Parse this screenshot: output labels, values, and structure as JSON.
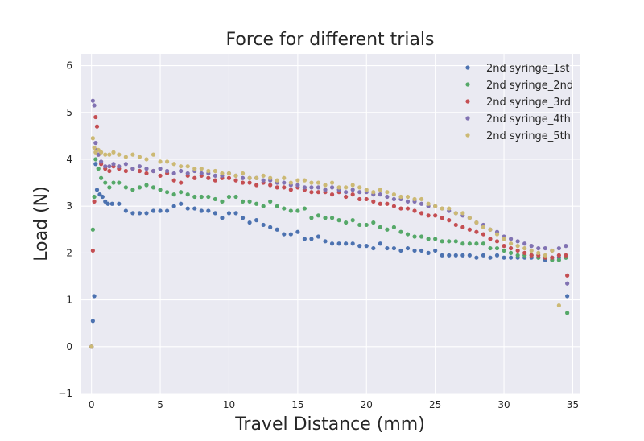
{
  "chart_data": {
    "type": "scatter",
    "title": "Force for different trials",
    "xlabel": "Travel Distance (mm)",
    "ylabel": "Load (N)",
    "xlim": [
      -0.8,
      35.5
    ],
    "ylim": [
      -1,
      6.25
    ],
    "xticks": [
      0,
      5,
      10,
      15,
      20,
      25,
      30,
      35
    ],
    "yticks": [
      -1,
      0,
      1,
      2,
      3,
      4,
      5,
      6
    ],
    "xtick_labels": [
      "0",
      "5",
      "10",
      "15",
      "20",
      "25",
      "30",
      "35"
    ],
    "ytick_labels": [
      "−1",
      "0",
      "1",
      "2",
      "3",
      "4",
      "5",
      "6"
    ],
    "grid": true,
    "legend_position": "top-right",
    "background": "#eaeaf2",
    "series": [
      {
        "name": "2nd syringe_1st",
        "color": "#4c72b0",
        "x": [
          0.0,
          0.1,
          0.2,
          0.3,
          0.4,
          0.6,
          0.8,
          1.0,
          1.2,
          1.5,
          2.0,
          2.5,
          3.0,
          3.5,
          4.0,
          4.5,
          5.0,
          5.5,
          6.0,
          6.5,
          7.0,
          7.5,
          8.0,
          8.5,
          9.0,
          9.5,
          10.0,
          10.5,
          11.0,
          11.5,
          12.0,
          12.5,
          13.0,
          13.5,
          14.0,
          14.5,
          15.0,
          15.5,
          16.0,
          16.5,
          17.0,
          17.5,
          18.0,
          18.5,
          19.0,
          19.5,
          20.0,
          20.5,
          21.0,
          21.5,
          22.0,
          22.5,
          23.0,
          23.5,
          24.0,
          24.5,
          25.0,
          25.5,
          26.0,
          26.5,
          27.0,
          27.5,
          28.0,
          28.5,
          29.0,
          29.5,
          30.0,
          30.5,
          31.0,
          31.5,
          32.0,
          32.5,
          33.0,
          33.5,
          34.0,
          34.5,
          34.6
        ],
        "y": [
          0.0,
          0.55,
          1.08,
          3.9,
          3.35,
          3.25,
          3.2,
          3.1,
          3.05,
          3.05,
          3.05,
          2.9,
          2.85,
          2.85,
          2.85,
          2.9,
          2.9,
          2.9,
          3.0,
          3.05,
          2.95,
          2.95,
          2.9,
          2.9,
          2.85,
          2.75,
          2.85,
          2.85,
          2.75,
          2.65,
          2.7,
          2.6,
          2.55,
          2.5,
          2.4,
          2.4,
          2.45,
          2.3,
          2.3,
          2.35,
          2.25,
          2.2,
          2.2,
          2.2,
          2.2,
          2.15,
          2.15,
          2.1,
          2.2,
          2.1,
          2.1,
          2.05,
          2.1,
          2.05,
          2.05,
          2.0,
          2.05,
          1.95,
          1.95,
          1.95,
          1.95,
          1.95,
          1.9,
          1.95,
          1.9,
          1.95,
          1.9,
          1.9,
          1.9,
          1.9,
          1.9,
          1.9,
          1.85,
          1.9,
          1.9,
          1.9,
          1.08
        ]
      },
      {
        "name": "2nd syringe_2nd",
        "color": "#55a868",
        "x": [
          0.0,
          0.1,
          0.2,
          0.3,
          0.5,
          0.7,
          1.0,
          1.3,
          1.6,
          2.0,
          2.5,
          3.0,
          3.5,
          4.0,
          4.5,
          5.0,
          5.5,
          6.0,
          6.5,
          7.0,
          7.5,
          8.0,
          8.5,
          9.0,
          9.5,
          10.0,
          10.5,
          11.0,
          11.5,
          12.0,
          12.5,
          13.0,
          13.5,
          14.0,
          14.5,
          15.0,
          15.5,
          16.0,
          16.5,
          17.0,
          17.5,
          18.0,
          18.5,
          19.0,
          19.5,
          20.0,
          20.5,
          21.0,
          21.5,
          22.0,
          22.5,
          23.0,
          23.5,
          24.0,
          24.5,
          25.0,
          25.5,
          26.0,
          26.5,
          27.0,
          27.5,
          28.0,
          28.5,
          29.0,
          29.5,
          30.0,
          30.5,
          31.0,
          31.5,
          32.0,
          32.5,
          33.0,
          33.5,
          34.0,
          34.5,
          34.6
        ],
        "y": [
          0.0,
          2.5,
          3.2,
          4.0,
          3.8,
          3.6,
          3.5,
          3.4,
          3.5,
          3.5,
          3.4,
          3.35,
          3.4,
          3.45,
          3.4,
          3.35,
          3.3,
          3.25,
          3.3,
          3.25,
          3.2,
          3.2,
          3.2,
          3.15,
          3.1,
          3.2,
          3.2,
          3.1,
          3.1,
          3.05,
          3.0,
          3.1,
          3.0,
          2.95,
          2.9,
          2.9,
          2.95,
          2.75,
          2.8,
          2.75,
          2.75,
          2.7,
          2.65,
          2.7,
          2.6,
          2.6,
          2.65,
          2.55,
          2.5,
          2.55,
          2.45,
          2.4,
          2.35,
          2.35,
          2.3,
          2.3,
          2.25,
          2.25,
          2.25,
          2.2,
          2.2,
          2.2,
          2.2,
          2.1,
          2.1,
          2.05,
          2.0,
          1.95,
          1.95,
          1.95,
          1.9,
          1.9,
          1.85,
          1.85,
          1.9,
          0.72
        ]
      },
      {
        "name": "2nd syringe_3rd",
        "color": "#c44e52",
        "x": [
          0.0,
          0.1,
          0.2,
          0.3,
          0.4,
          0.5,
          0.7,
          1.0,
          1.3,
          1.6,
          2.0,
          2.5,
          3.0,
          3.5,
          4.0,
          4.5,
          5.0,
          5.5,
          6.0,
          6.5,
          7.0,
          7.5,
          8.0,
          8.5,
          9.0,
          9.5,
          10.0,
          10.5,
          11.0,
          11.5,
          12.0,
          12.5,
          13.0,
          13.5,
          14.0,
          14.5,
          15.0,
          15.5,
          16.0,
          16.5,
          17.0,
          17.5,
          18.0,
          18.5,
          19.0,
          19.5,
          20.0,
          20.5,
          21.0,
          21.5,
          22.0,
          22.5,
          23.0,
          23.5,
          24.0,
          24.5,
          25.0,
          25.5,
          26.0,
          26.5,
          27.0,
          27.5,
          28.0,
          28.5,
          29.0,
          29.5,
          30.0,
          30.5,
          31.0,
          31.5,
          32.0,
          32.5,
          33.0,
          33.5,
          34.0,
          34.5,
          34.6
        ],
        "y": [
          0.0,
          2.05,
          3.1,
          4.9,
          4.7,
          4.1,
          3.9,
          3.8,
          3.75,
          3.85,
          3.8,
          3.75,
          3.8,
          3.75,
          3.7,
          3.75,
          3.65,
          3.7,
          3.55,
          3.5,
          3.65,
          3.6,
          3.65,
          3.6,
          3.55,
          3.6,
          3.6,
          3.55,
          3.5,
          3.5,
          3.45,
          3.5,
          3.45,
          3.4,
          3.4,
          3.35,
          3.4,
          3.35,
          3.3,
          3.3,
          3.3,
          3.25,
          3.3,
          3.2,
          3.25,
          3.15,
          3.15,
          3.1,
          3.05,
          3.05,
          3.0,
          2.95,
          2.95,
          2.9,
          2.85,
          2.8,
          2.8,
          2.75,
          2.7,
          2.6,
          2.55,
          2.5,
          2.45,
          2.4,
          2.3,
          2.25,
          2.15,
          2.1,
          2.05,
          2.0,
          1.95,
          1.95,
          1.9,
          1.9,
          1.95,
          1.95,
          1.52
        ]
      },
      {
        "name": "2nd syringe_4th",
        "color": "#8172b2",
        "x": [
          0.0,
          0.1,
          0.2,
          0.3,
          0.4,
          0.5,
          0.7,
          1.0,
          1.3,
          1.6,
          2.0,
          2.5,
          3.0,
          3.5,
          4.0,
          4.5,
          5.0,
          5.5,
          6.0,
          6.5,
          7.0,
          7.5,
          8.0,
          8.5,
          9.0,
          9.5,
          10.0,
          10.5,
          11.0,
          11.5,
          12.0,
          12.5,
          13.0,
          13.5,
          14.0,
          14.5,
          15.0,
          15.5,
          16.0,
          16.5,
          17.0,
          17.5,
          18.0,
          18.5,
          19.0,
          19.5,
          20.0,
          20.5,
          21.0,
          21.5,
          22.0,
          22.5,
          23.0,
          23.5,
          24.0,
          24.5,
          25.0,
          25.5,
          26.0,
          26.5,
          27.0,
          27.5,
          28.0,
          28.5,
          29.0,
          29.5,
          30.0,
          30.5,
          31.0,
          31.5,
          32.0,
          32.5,
          33.0,
          33.5,
          34.0,
          34.5,
          34.6
        ],
        "y": [
          0.0,
          5.25,
          5.15,
          4.35,
          4.2,
          4.1,
          3.95,
          3.85,
          3.85,
          3.9,
          3.85,
          3.9,
          3.8,
          3.85,
          3.8,
          3.75,
          3.8,
          3.75,
          3.7,
          3.75,
          3.7,
          3.75,
          3.7,
          3.7,
          3.65,
          3.65,
          3.7,
          3.65,
          3.6,
          3.6,
          3.6,
          3.55,
          3.55,
          3.5,
          3.5,
          3.45,
          3.45,
          3.4,
          3.4,
          3.4,
          3.35,
          3.4,
          3.35,
          3.3,
          3.35,
          3.3,
          3.3,
          3.25,
          3.25,
          3.2,
          3.15,
          3.15,
          3.1,
          3.1,
          3.05,
          3.0,
          3.0,
          2.95,
          2.9,
          2.85,
          2.8,
          2.75,
          2.65,
          2.6,
          2.5,
          2.45,
          2.35,
          2.3,
          2.25,
          2.2,
          2.15,
          2.1,
          2.1,
          2.05,
          2.1,
          2.15,
          1.35
        ]
      },
      {
        "name": "2nd syringe_5th",
        "color": "#ccb974",
        "x": [
          0.0,
          0.1,
          0.2,
          0.3,
          0.5,
          0.7,
          1.0,
          1.3,
          1.6,
          2.0,
          2.5,
          3.0,
          3.5,
          4.0,
          4.5,
          5.0,
          5.5,
          6.0,
          6.5,
          7.0,
          7.5,
          8.0,
          8.5,
          9.0,
          9.5,
          10.0,
          10.5,
          11.0,
          11.5,
          12.0,
          12.5,
          13.0,
          13.5,
          14.0,
          14.5,
          15.0,
          15.5,
          16.0,
          16.5,
          17.0,
          17.5,
          18.0,
          18.5,
          19.0,
          19.5,
          20.0,
          20.5,
          21.0,
          21.5,
          22.0,
          22.5,
          23.0,
          23.5,
          24.0,
          24.5,
          25.0,
          25.5,
          26.0,
          26.5,
          27.0,
          27.5,
          28.0,
          28.5,
          29.0,
          29.5,
          30.0,
          30.5,
          31.0,
          31.5,
          32.0,
          32.5,
          33.0,
          33.5,
          34.0
        ],
        "y": [
          0.0,
          4.45,
          4.25,
          4.15,
          4.2,
          4.15,
          4.1,
          4.1,
          4.15,
          4.1,
          4.05,
          4.1,
          4.05,
          4.0,
          4.1,
          3.95,
          3.95,
          3.9,
          3.85,
          3.85,
          3.8,
          3.8,
          3.75,
          3.75,
          3.7,
          3.7,
          3.65,
          3.7,
          3.6,
          3.6,
          3.65,
          3.6,
          3.55,
          3.6,
          3.5,
          3.55,
          3.55,
          3.5,
          3.5,
          3.45,
          3.5,
          3.4,
          3.4,
          3.45,
          3.4,
          3.35,
          3.3,
          3.35,
          3.3,
          3.25,
          3.2,
          3.2,
          3.15,
          3.15,
          3.05,
          3.0,
          2.95,
          2.95,
          2.85,
          2.85,
          2.75,
          2.65,
          2.55,
          2.5,
          2.4,
          2.3,
          2.2,
          2.15,
          2.1,
          2.05,
          2.0,
          1.95,
          2.05,
          0.88
        ]
      }
    ]
  }
}
